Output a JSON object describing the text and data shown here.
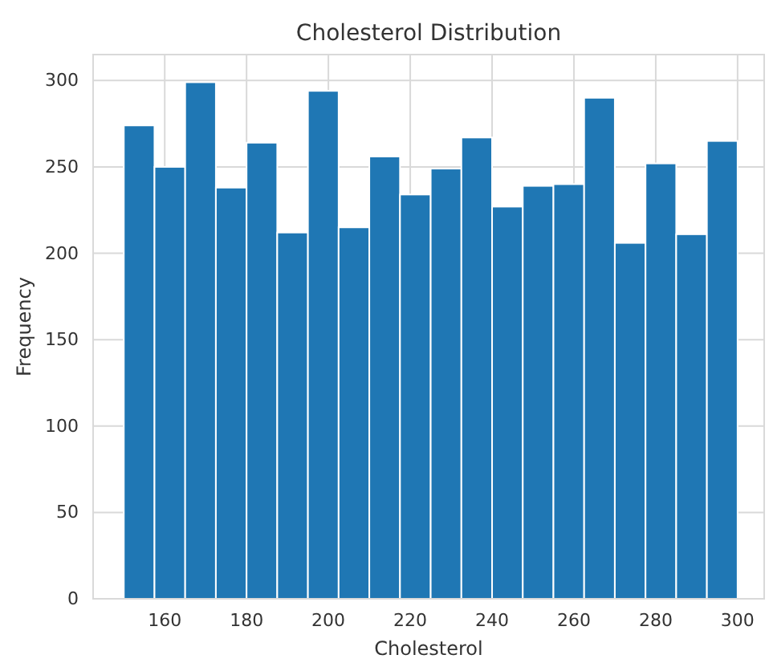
{
  "chart_data": {
    "type": "histogram",
    "title": "Cholesterol Distribution",
    "xlabel": "Cholesterol",
    "ylabel": "Frequency",
    "bins": [
      150,
      157.5,
      165,
      172.5,
      180,
      187.5,
      195,
      202.5,
      210,
      217.5,
      225,
      232.5,
      240,
      247.5,
      255,
      262.5,
      270,
      277.5,
      285,
      292.5,
      300
    ],
    "values": [
      274,
      250,
      299,
      238,
      264,
      212,
      294,
      215,
      256,
      234,
      249,
      267,
      227,
      239,
      240,
      290,
      206,
      252,
      211,
      265
    ],
    "color": "#1f77b4",
    "xlim": [
      142.5,
      306.5
    ],
    "xticks": [
      160,
      180,
      200,
      220,
      240,
      260,
      280,
      300
    ],
    "ylim": [
      0,
      315
    ],
    "yticks": [
      0,
      50,
      100,
      150,
      200,
      250,
      300
    ],
    "grid": true
  }
}
